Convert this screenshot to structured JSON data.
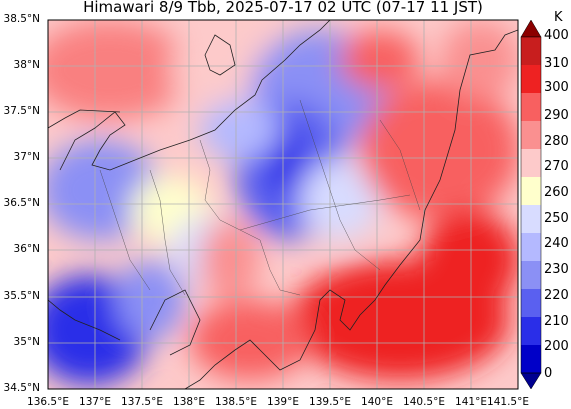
{
  "title": "Himawari 8/9 Tbb, 2025-07-17 02 UTC (07-17 11 JST)",
  "lat_labels": [
    "38.5°N",
    "38°N",
    "37.5°N",
    "37°N",
    "36.5°N",
    "36°N",
    "35.5°N",
    "35°N",
    "34.5°N"
  ],
  "lon_labels": [
    "136.5°E",
    "137°E",
    "137.5°E",
    "138°E",
    "138.5°E",
    "139°E",
    "139.5°E",
    "140°E",
    "140.5°E",
    "141°E",
    "141.5°E"
  ],
  "colorbar": {
    "unit": "K",
    "labels": [
      "400",
      "310",
      "300",
      "290",
      "280",
      "270",
      "260",
      "250",
      "240",
      "230",
      "220",
      "210",
      "200",
      "0"
    ],
    "colors": [
      "#8b0000",
      "#c81e1e",
      "#ee2222",
      "#f86060",
      "#fa9090",
      "#fdcaca",
      "#ffffcc",
      "#d8dcff",
      "#b4b9ff",
      "#8b90f5",
      "#5a60f0",
      "#2a2ee8",
      "#0000c8",
      "#000090"
    ]
  }
}
